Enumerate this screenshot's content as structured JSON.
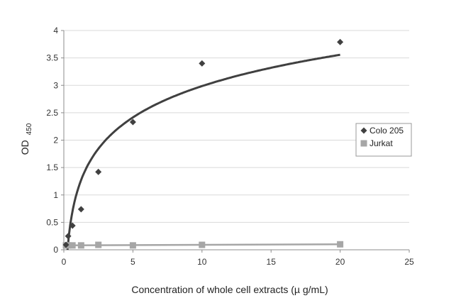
{
  "chart_data": {
    "type": "scatter",
    "title": "",
    "xlabel": "Concentration of whole cell extracts (µ g/mL)",
    "ylabel_main": "OD",
    "ylabel_sub": "450",
    "xlim": [
      0,
      25
    ],
    "ylim": [
      0,
      4
    ],
    "x_ticks": [
      0,
      5,
      10,
      15,
      20,
      25
    ],
    "y_ticks": [
      0,
      0.5,
      1,
      1.5,
      2,
      2.5,
      3,
      3.5,
      4
    ],
    "x_tick_labels": [
      "0",
      "5",
      "10",
      "15",
      "20",
      "25"
    ],
    "y_tick_labels": [
      "0",
      "0.5",
      "1",
      "1.5",
      "2",
      "2.5",
      "3",
      "3.5",
      "4"
    ],
    "grid": true,
    "legend_position": "right",
    "series": [
      {
        "name": "Colo 205",
        "marker": "diamond",
        "color": "#404040",
        "trendline": "logarithmic",
        "x": [
          0.156,
          0.313,
          0.625,
          1.25,
          2.5,
          5,
          10,
          20
        ],
        "y": [
          0.09,
          0.25,
          0.44,
          0.74,
          1.42,
          2.33,
          3.4,
          3.79
        ]
      },
      {
        "name": "Jurkat",
        "marker": "square",
        "color": "#a6a6a6",
        "trendline": "linear",
        "x": [
          0.156,
          0.313,
          0.625,
          1.25,
          2.5,
          5,
          10,
          20
        ],
        "y": [
          0.08,
          0.08,
          0.08,
          0.08,
          0.09,
          0.08,
          0.09,
          0.1
        ]
      }
    ]
  }
}
